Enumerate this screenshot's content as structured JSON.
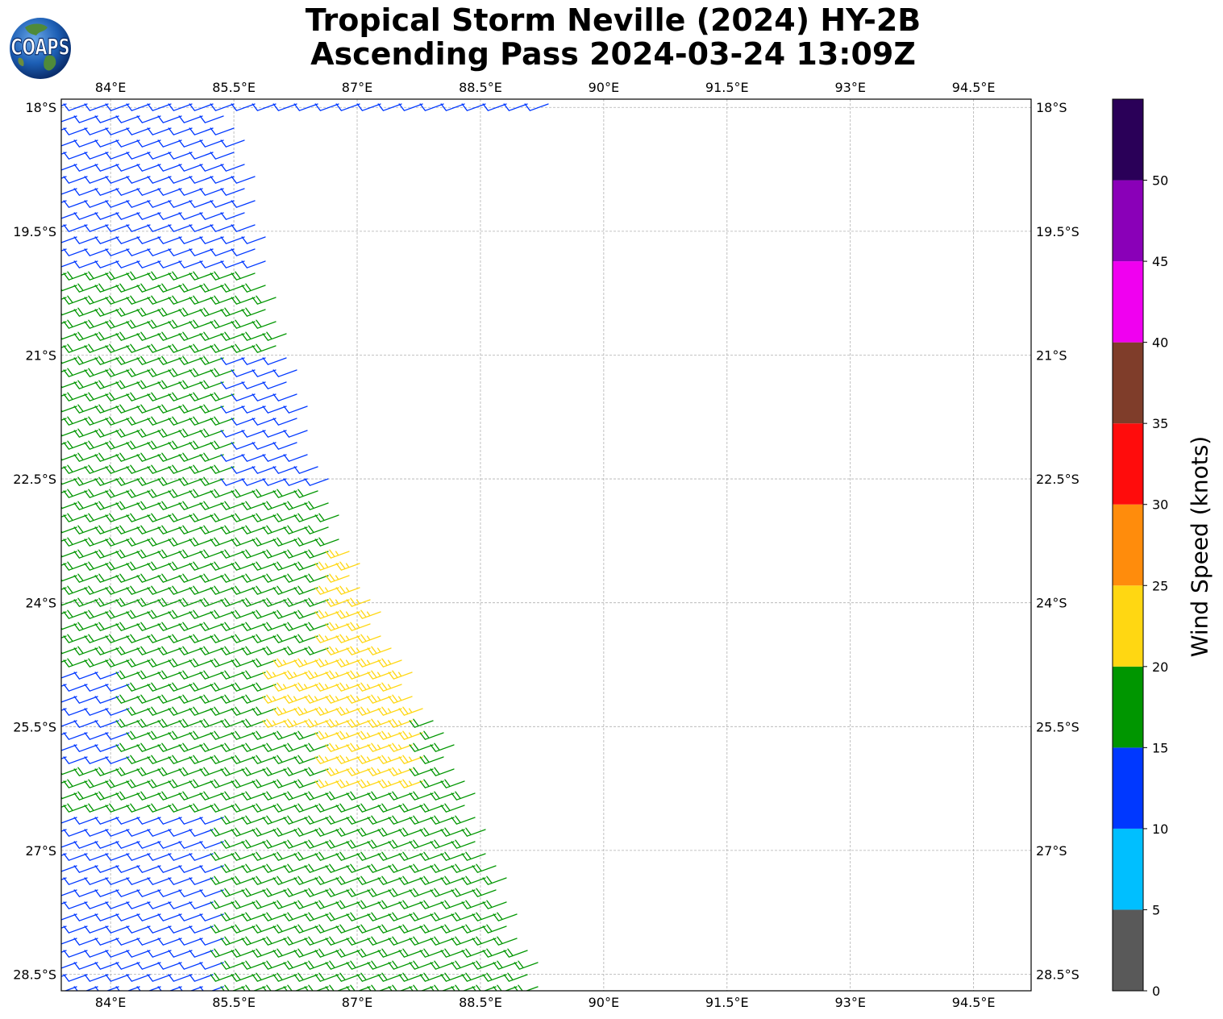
{
  "title": {
    "line1": "Tropical Storm Neville (2024) HY-2B",
    "line2": "Ascending Pass 2024-03-24 13:09Z"
  },
  "logo": {
    "text": "COAPS",
    "icon": "globe-logo-icon"
  },
  "map": {
    "lon_range": [
      83.4,
      95.2
    ],
    "lat_range": [
      -28.7,
      -17.9
    ],
    "lon_ticks": [
      "84°E",
      "85.5°E",
      "87°E",
      "88.5°E",
      "90°E",
      "91.5°E",
      "93°E",
      "94.5°E"
    ],
    "lon_tick_values": [
      84,
      85.5,
      87,
      88.5,
      90,
      91.5,
      93,
      94.5
    ],
    "lat_ticks": [
      "18°S",
      "19.5°S",
      "21°S",
      "22.5°S",
      "24°S",
      "25.5°S",
      "27°S",
      "28.5°S"
    ],
    "lat_tick_values": [
      -18,
      -19.5,
      -21,
      -22.5,
      -24,
      -25.5,
      -27,
      -28.5
    ],
    "grid": true,
    "swath": {
      "direction_deg_from_north": 250,
      "east_edge": [
        [
          -18.0,
          85.55
        ],
        [
          -20.0,
          85.95
        ],
        [
          -22.0,
          86.45
        ],
        [
          -24.0,
          87.2
        ],
        [
          -26.0,
          88.3
        ],
        [
          -28.7,
          89.3
        ]
      ],
      "speed_regions": [
        {
          "lat_min": -28.7,
          "lat_max": -17.9,
          "lon_min": 83.4,
          "lon_max": 96,
          "speed_kt": 12
        },
        {
          "lat_min": -26.6,
          "lat_max": -20.0,
          "lon_min": 83.4,
          "lon_max": 96,
          "speed_kt": 17
        },
        {
          "lat_min": -22.5,
          "lat_max": -20.9,
          "lon_min": 85.5,
          "lon_max": 96,
          "speed_kt": 12
        },
        {
          "lat_min": -26.0,
          "lat_max": -24.8,
          "lon_min": 83.4,
          "lon_max": 84.3,
          "speed_kt": 12
        },
        {
          "lat_min": -28.7,
          "lat_max": -26.5,
          "lon_min": 85.4,
          "lon_max": 96,
          "speed_kt": 17
        },
        {
          "lat_min": -26.3,
          "lat_max": -23.3,
          "lon_min": 86.7,
          "lon_max": 87.9,
          "speed_kt": 22
        },
        {
          "lat_min": -25.5,
          "lat_max": -24.6,
          "lon_min": 86.1,
          "lon_max": 86.8,
          "speed_kt": 22
        }
      ]
    }
  },
  "colorbar": {
    "label": "Wind Speed (knots)",
    "min": 0,
    "max": 55,
    "bins": [
      {
        "from": 0,
        "to": 5,
        "color": "#595959"
      },
      {
        "from": 5,
        "to": 10,
        "color": "#00bfff"
      },
      {
        "from": 10,
        "to": 15,
        "color": "#0038ff"
      },
      {
        "from": 15,
        "to": 20,
        "color": "#009600"
      },
      {
        "from": 20,
        "to": 25,
        "color": "#ffd712"
      },
      {
        "from": 25,
        "to": 30,
        "color": "#ff8c0c"
      },
      {
        "from": 30,
        "to": 35,
        "color": "#ff0c0c"
      },
      {
        "from": 35,
        "to": 40,
        "color": "#7f3d2a"
      },
      {
        "from": 40,
        "to": 45,
        "color": "#f000f0"
      },
      {
        "from": 45,
        "to": 50,
        "color": "#8a00b8"
      },
      {
        "from": 50,
        "to": 55,
        "color": "#2a0058"
      }
    ],
    "ticks": [
      "0",
      "5",
      "10",
      "15",
      "20",
      "25",
      "30",
      "35",
      "40",
      "45",
      "50"
    ],
    "tick_values": [
      0,
      5,
      10,
      15,
      20,
      25,
      30,
      35,
      40,
      45,
      50
    ]
  }
}
